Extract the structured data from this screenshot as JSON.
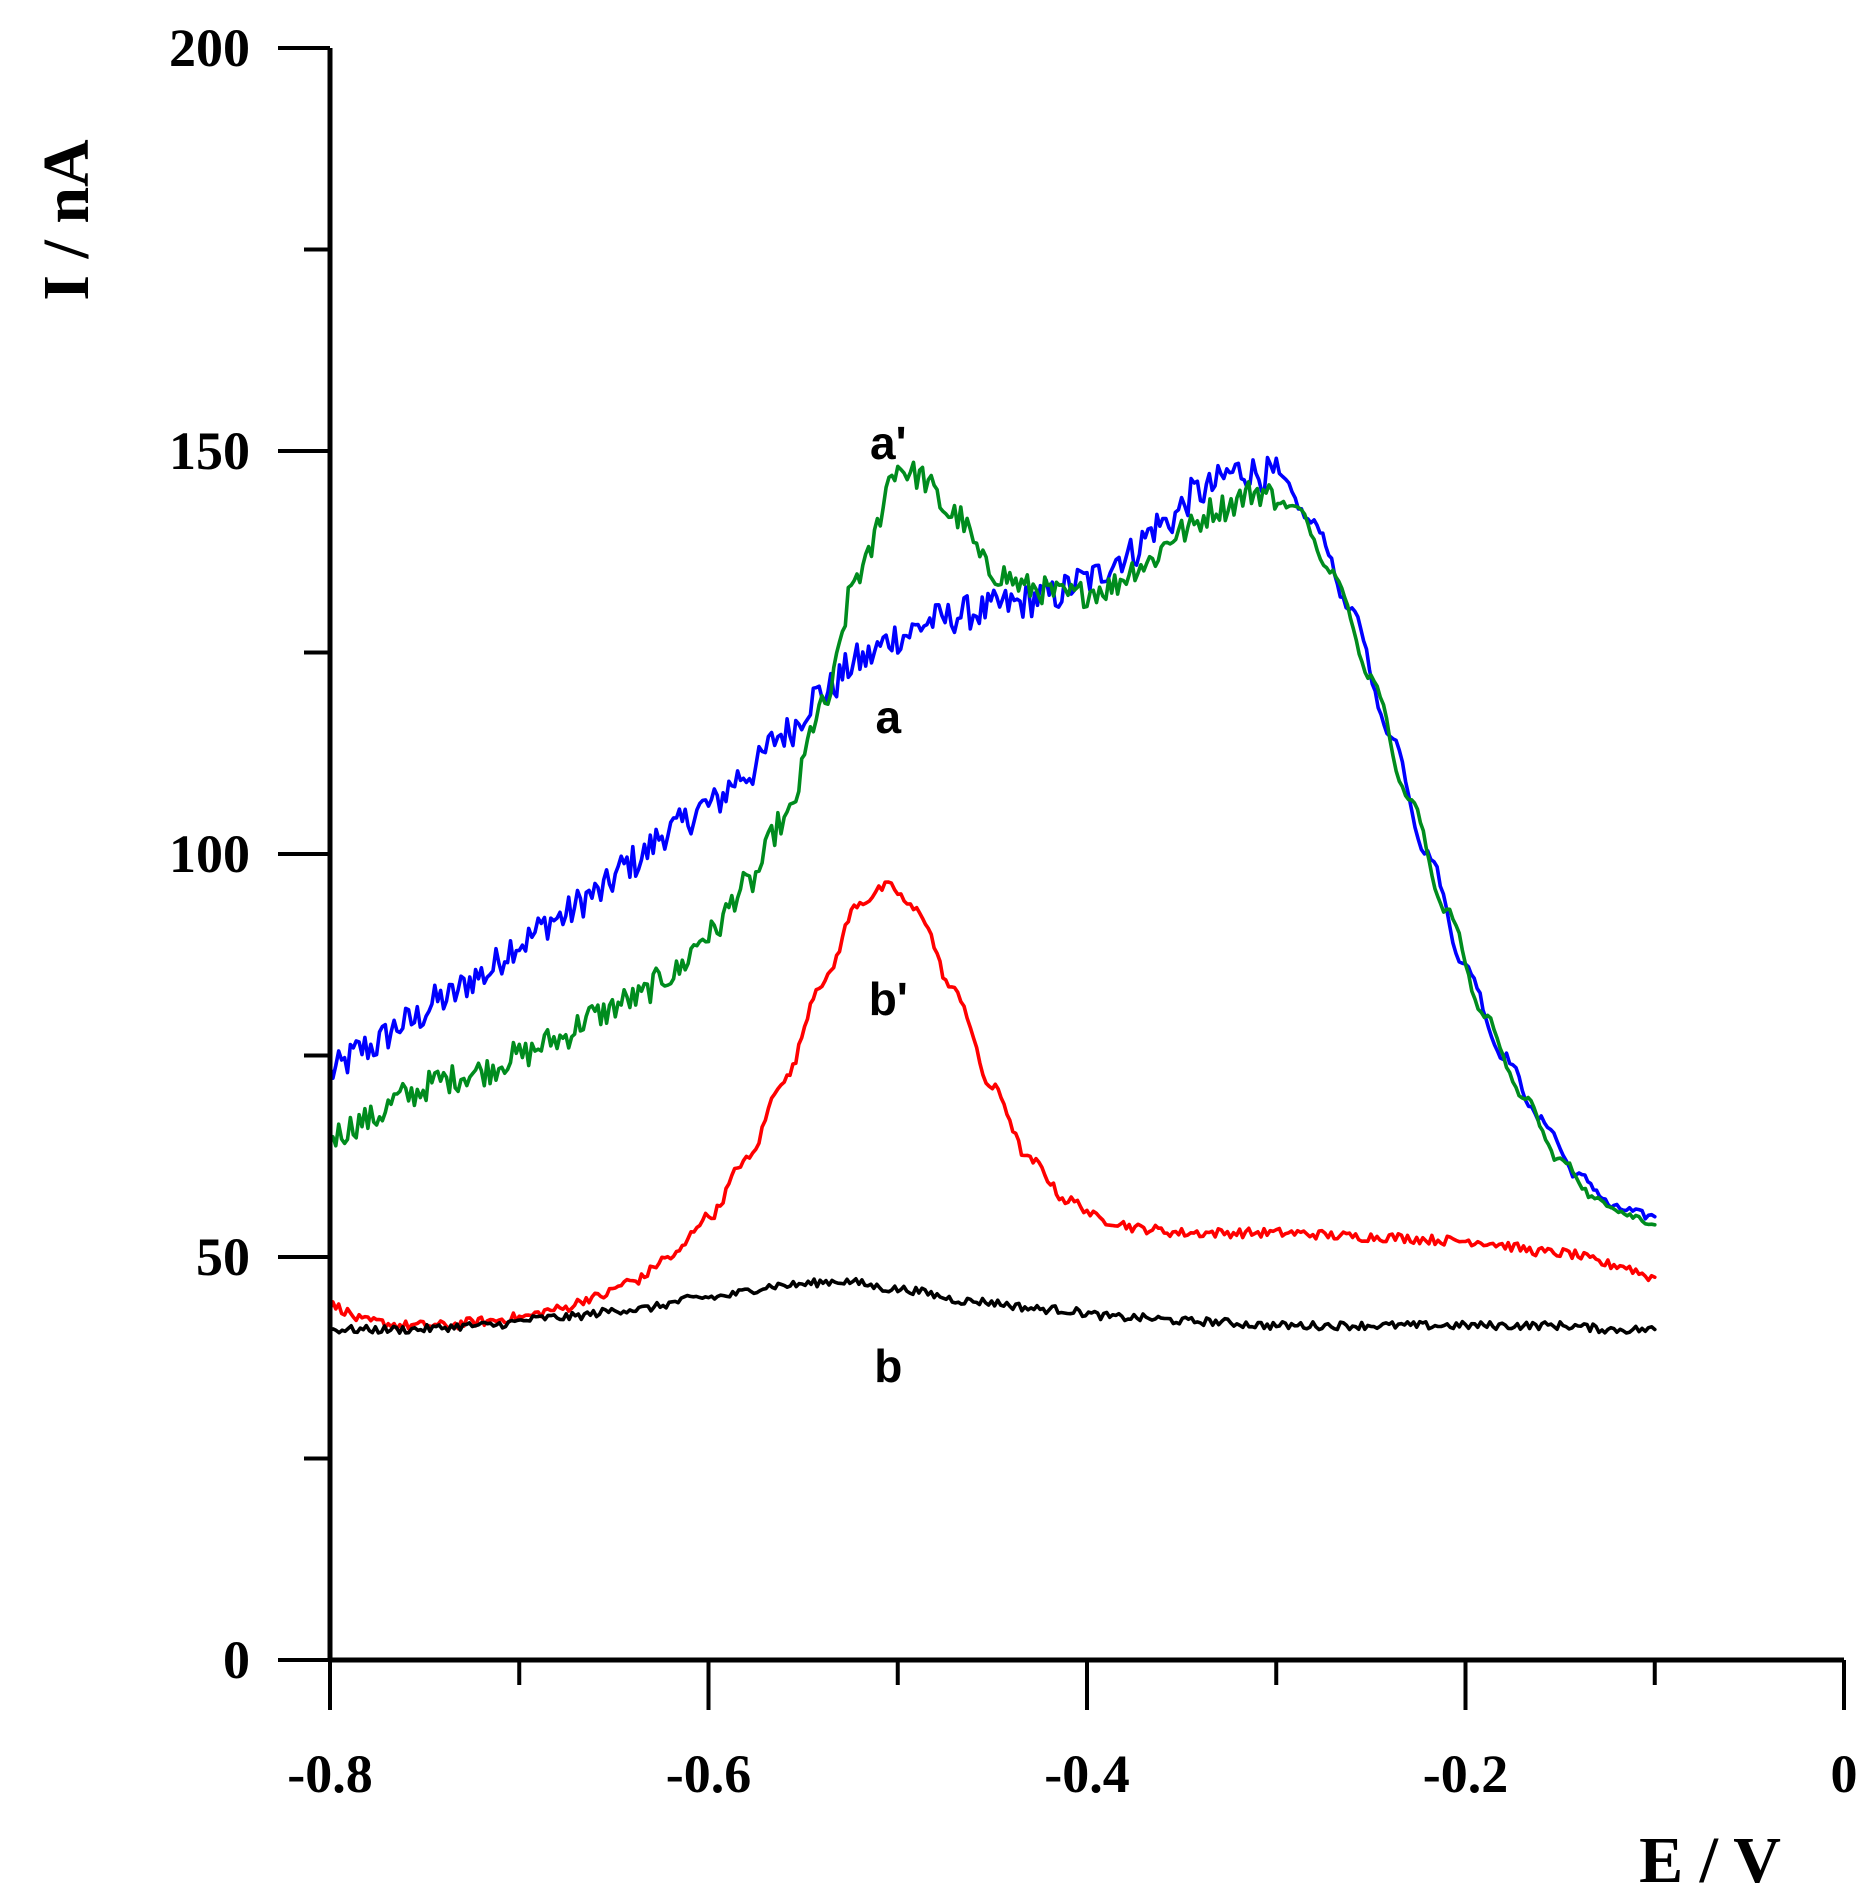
{
  "chart_data": {
    "type": "line",
    "title": "",
    "xlabel": "E / V",
    "ylabel": "I / nA",
    "xlim": [
      -0.8,
      0
    ],
    "ylim": [
      0,
      200
    ],
    "x_ticks": [
      -0.8,
      -0.6,
      -0.4,
      -0.2,
      0
    ],
    "x_tick_labels": [
      "-0.8",
      "-0.6",
      "-0.4",
      "-0.2",
      "0"
    ],
    "x_minor_ticks": [
      -0.7,
      -0.5,
      -0.3,
      -0.1
    ],
    "y_ticks": [
      0,
      50,
      100,
      150,
      200
    ],
    "y_tick_labels": [
      "0",
      "50",
      "100",
      "150",
      "200"
    ],
    "y_minor_ticks": [
      25,
      75,
      125,
      175
    ],
    "grid": false,
    "series": [
      {
        "name": "a",
        "color": "#0000ff",
        "noise": 2.2,
        "points": [
          [
            -0.8,
            73
          ],
          [
            -0.78,
            76
          ],
          [
            -0.76,
            79
          ],
          [
            -0.74,
            82
          ],
          [
            -0.72,
            85
          ],
          [
            -0.7,
            89
          ],
          [
            -0.68,
            92
          ],
          [
            -0.66,
            95
          ],
          [
            -0.64,
            99
          ],
          [
            -0.62,
            103
          ],
          [
            -0.6,
            106
          ],
          [
            -0.58,
            110
          ],
          [
            -0.56,
            115
          ],
          [
            -0.54,
            120
          ],
          [
            -0.52,
            124
          ],
          [
            -0.5,
            127
          ],
          [
            -0.48,
            129
          ],
          [
            -0.46,
            130
          ],
          [
            -0.44,
            131
          ],
          [
            -0.42,
            132
          ],
          [
            -0.4,
            134
          ],
          [
            -0.38,
            137
          ],
          [
            -0.36,
            141
          ],
          [
            -0.34,
            145
          ],
          [
            -0.32,
            147.5
          ],
          [
            -0.3,
            147
          ],
          [
            -0.28,
            141
          ],
          [
            -0.26,
            130
          ],
          [
            -0.24,
            115
          ],
          [
            -0.22,
            100
          ],
          [
            -0.2,
            86
          ],
          [
            -0.18,
            75
          ],
          [
            -0.16,
            67
          ],
          [
            -0.14,
            60
          ],
          [
            -0.12,
            56
          ],
          [
            -0.1,
            55
          ]
        ]
      },
      {
        "name": "a'",
        "color": "#008c1e",
        "noise": 1.8,
        "points": [
          [
            -0.8,
            65
          ],
          [
            -0.78,
            67
          ],
          [
            -0.76,
            70
          ],
          [
            -0.74,
            72
          ],
          [
            -0.72,
            73
          ],
          [
            -0.7,
            75
          ],
          [
            -0.68,
            77
          ],
          [
            -0.66,
            80
          ],
          [
            -0.64,
            82
          ],
          [
            -0.62,
            85
          ],
          [
            -0.6,
            90
          ],
          [
            -0.58,
            96
          ],
          [
            -0.56,
            104
          ],
          [
            -0.54,
            118
          ],
          [
            -0.52,
            135
          ],
          [
            -0.5,
            148
          ],
          [
            -0.49,
            147
          ],
          [
            -0.47,
            142
          ],
          [
            -0.45,
            135
          ],
          [
            -0.43,
            133
          ],
          [
            -0.41,
            132
          ],
          [
            -0.39,
            133
          ],
          [
            -0.37,
            136
          ],
          [
            -0.35,
            140
          ],
          [
            -0.33,
            143
          ],
          [
            -0.31,
            145
          ],
          [
            -0.29,
            143
          ],
          [
            -0.27,
            135
          ],
          [
            -0.25,
            122
          ],
          [
            -0.23,
            107
          ],
          [
            -0.21,
            93
          ],
          [
            -0.19,
            80
          ],
          [
            -0.17,
            70
          ],
          [
            -0.15,
            62
          ],
          [
            -0.13,
            57
          ],
          [
            -0.11,
            55
          ],
          [
            -0.1,
            54
          ]
        ]
      },
      {
        "name": "b'",
        "color": "#ff0000",
        "noise": 0.6,
        "points": [
          [
            -0.8,
            44
          ],
          [
            -0.78,
            42
          ],
          [
            -0.76,
            41.5
          ],
          [
            -0.74,
            41.5
          ],
          [
            -0.72,
            42
          ],
          [
            -0.7,
            42.5
          ],
          [
            -0.68,
            43.5
          ],
          [
            -0.66,
            45
          ],
          [
            -0.64,
            47
          ],
          [
            -0.62,
            50
          ],
          [
            -0.6,
            55
          ],
          [
            -0.58,
            62
          ],
          [
            -0.56,
            72
          ],
          [
            -0.54,
            84
          ],
          [
            -0.52,
            94
          ],
          [
            -0.505,
            96
          ],
          [
            -0.49,
            93
          ],
          [
            -0.47,
            83
          ],
          [
            -0.45,
            71
          ],
          [
            -0.43,
            62
          ],
          [
            -0.41,
            57
          ],
          [
            -0.39,
            54.5
          ],
          [
            -0.37,
            53.5
          ],
          [
            -0.35,
            53
          ],
          [
            -0.3,
            53
          ],
          [
            -0.25,
            52.5
          ],
          [
            -0.2,
            52
          ],
          [
            -0.15,
            50.5
          ],
          [
            -0.12,
            49
          ],
          [
            -0.1,
            47.5
          ]
        ]
      },
      {
        "name": "b",
        "color": "#000000",
        "noise": 0.5,
        "points": [
          [
            -0.8,
            41
          ],
          [
            -0.76,
            41
          ],
          [
            -0.72,
            41.5
          ],
          [
            -0.68,
            42.5
          ],
          [
            -0.64,
            43.5
          ],
          [
            -0.6,
            45
          ],
          [
            -0.56,
            46.5
          ],
          [
            -0.53,
            47
          ],
          [
            -0.5,
            46
          ],
          [
            -0.46,
            44.5
          ],
          [
            -0.42,
            43.5
          ],
          [
            -0.38,
            42.5
          ],
          [
            -0.34,
            42
          ],
          [
            -0.3,
            41.5
          ],
          [
            -0.25,
            41.5
          ],
          [
            -0.2,
            41.5
          ],
          [
            -0.15,
            41.5
          ],
          [
            -0.12,
            41
          ],
          [
            -0.1,
            41
          ]
        ]
      }
    ],
    "annotations": [
      {
        "text": "a'",
        "x": -0.505,
        "y": 151
      },
      {
        "text": "a",
        "x": -0.505,
        "y": 117
      },
      {
        "text": "b'",
        "x": -0.505,
        "y": 82
      },
      {
        "text": "b",
        "x": -0.505,
        "y": 36.5
      }
    ]
  }
}
